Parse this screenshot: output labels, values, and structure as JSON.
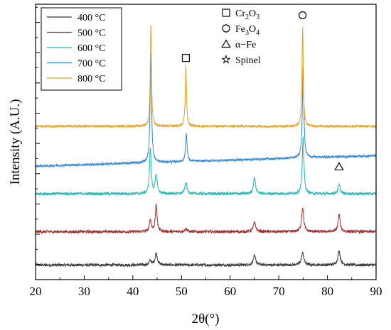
{
  "chart_data": {
    "type": "line",
    "title": "",
    "xlabel": "2θ(°)",
    "ylabel": "Intensity (A.U.)",
    "xlim": [
      20,
      90
    ],
    "ylim": [
      0,
      100
    ],
    "x_ticks": [
      "20",
      "30",
      "40",
      "50",
      "60",
      "70",
      "80",
      "90"
    ],
    "y_tick_labels": false,
    "grid": false,
    "legend_position": "top-left",
    "series": [
      {
        "name": "400 °C",
        "color": "#3a3a3a",
        "baseline": 5.3,
        "noise": 0.5,
        "peaks": [
          [
            43.6,
            1.6,
            0.25
          ],
          [
            44.8,
            4.3,
            0.28
          ],
          [
            65.0,
            3.3,
            0.3
          ],
          [
            74.9,
            4.4,
            0.3
          ],
          [
            82.4,
            5.0,
            0.3
          ]
        ]
      },
      {
        "name": "500 °C",
        "color": "#a52a2a",
        "baseline": 17.4,
        "noise": 0.5,
        "peaks": [
          [
            43.6,
            4.4,
            0.22
          ],
          [
            44.8,
            9.8,
            0.22
          ],
          [
            50.9,
            1.0,
            0.3
          ],
          [
            65.0,
            3.3,
            0.3
          ],
          [
            74.9,
            8.9,
            0.25
          ],
          [
            82.4,
            6.3,
            0.25
          ]
        ]
      },
      {
        "name": "600 °C",
        "color": "#1fb9b9",
        "baseline": 31.2,
        "noise": 0.5,
        "peaks": [
          [
            43.6,
            16.6,
            0.2
          ],
          [
            44.8,
            6.5,
            0.25
          ],
          [
            50.9,
            4.1,
            0.25
          ],
          [
            65.0,
            6.0,
            0.25
          ],
          [
            75.0,
            21.0,
            0.2
          ],
          [
            82.4,
            3.3,
            0.25
          ]
        ]
      },
      {
        "name": "700 °C",
        "color": "#3388e0",
        "baseline": 41.2,
        "noise": 0.4,
        "slope": 0.055,
        "peaks": [
          [
            43.7,
            39.5,
            0.18
          ],
          [
            51.0,
            10.2,
            0.18
          ],
          [
            75.0,
            33.8,
            0.18
          ]
        ]
      },
      {
        "name": "800 °C",
        "color": "#e8a020",
        "baseline": 55.7,
        "noise": 0.4,
        "peaks": [
          [
            43.7,
            36.5,
            0.15
          ],
          [
            50.9,
            22.0,
            0.15
          ],
          [
            74.9,
            36.3,
            0.15
          ]
        ]
      }
    ],
    "annotations": [
      {
        "symbol": "square",
        "label_plain": "",
        "label_main": "",
        "x": 50.9,
        "y": 80.5
      },
      {
        "symbol": "circle",
        "label_plain": "",
        "label_main": "",
        "x": 74.9,
        "y": 96.0
      },
      {
        "symbol": "triangle",
        "label_plain": "",
        "label_main": "",
        "x": 82.4,
        "y": 41.0
      }
    ],
    "phase_legend": [
      {
        "symbol": "square",
        "parts": [
          [
            "Cr",
            "n"
          ],
          [
            "2",
            "s"
          ],
          [
            "O",
            "n"
          ],
          [
            "3",
            "s"
          ]
        ]
      },
      {
        "symbol": "circle",
        "parts": [
          [
            "Fe",
            "n"
          ],
          [
            "3",
            "s"
          ],
          [
            "O",
            "n"
          ],
          [
            "4",
            "s"
          ]
        ]
      },
      {
        "symbol": "triangle",
        "parts": [
          [
            "α−Fe",
            "n"
          ]
        ]
      },
      {
        "symbol": "star",
        "parts": [
          [
            "Spinel",
            "n"
          ]
        ]
      }
    ]
  }
}
